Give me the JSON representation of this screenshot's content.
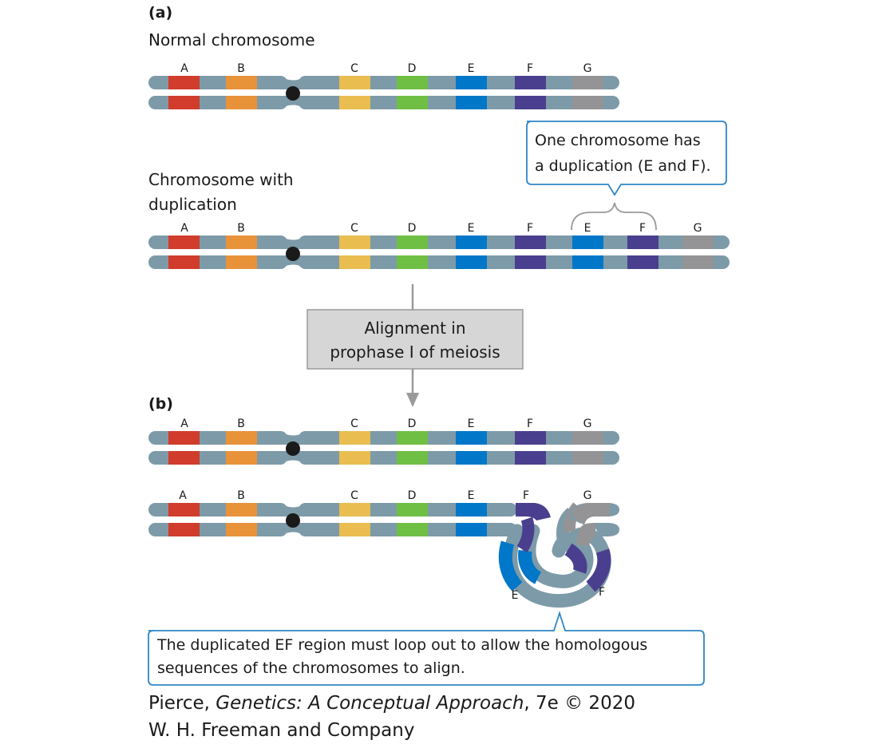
{
  "part_a": {
    "label": "(a)",
    "normal_title": "Normal chromosome",
    "normal_genes": [
      "A",
      "B",
      "C",
      "D",
      "E",
      "F",
      "G"
    ],
    "dup_title_line1": "Chromosome with",
    "dup_title_line2": "duplication",
    "dup_genes": [
      "A",
      "B",
      "C",
      "D",
      "E",
      "F",
      "E",
      "F",
      "G"
    ],
    "callout_line1": "One chromosome has",
    "callout_line2": "a duplication (E and F)."
  },
  "process_box": {
    "line1": "Alignment in",
    "line2": "prophase I of meiosis"
  },
  "part_b": {
    "label": "(b)",
    "top_genes": [
      "A",
      "B",
      "C",
      "D",
      "E",
      "F",
      "G"
    ],
    "bottom_genes": [
      "A",
      "B",
      "C",
      "D",
      "E",
      "F",
      "G"
    ],
    "loop_labels": [
      "E",
      "F"
    ],
    "callout_line1": "The duplicated EF region must loop out to allow the homologous",
    "callout_line2": "sequences of the chromosomes to align."
  },
  "credit": {
    "author": "Pierce, ",
    "book": "Genetics: A Conceptual Approach",
    "edition": ", 7e © 2020",
    "publisher": "W. H. Freeman and Company"
  },
  "colors": {
    "chromatid": "#7d9aa8",
    "centromere": "#1a1a1a",
    "A": "#d13c2c",
    "B": "#e8923a",
    "C": "#e9bd50",
    "D": "#6fbf45",
    "E": "#0077c8",
    "F": "#4a3f8e",
    "G": "#949496",
    "callout_border": "#2f86c6",
    "box_fill": "#d6d6d6"
  }
}
